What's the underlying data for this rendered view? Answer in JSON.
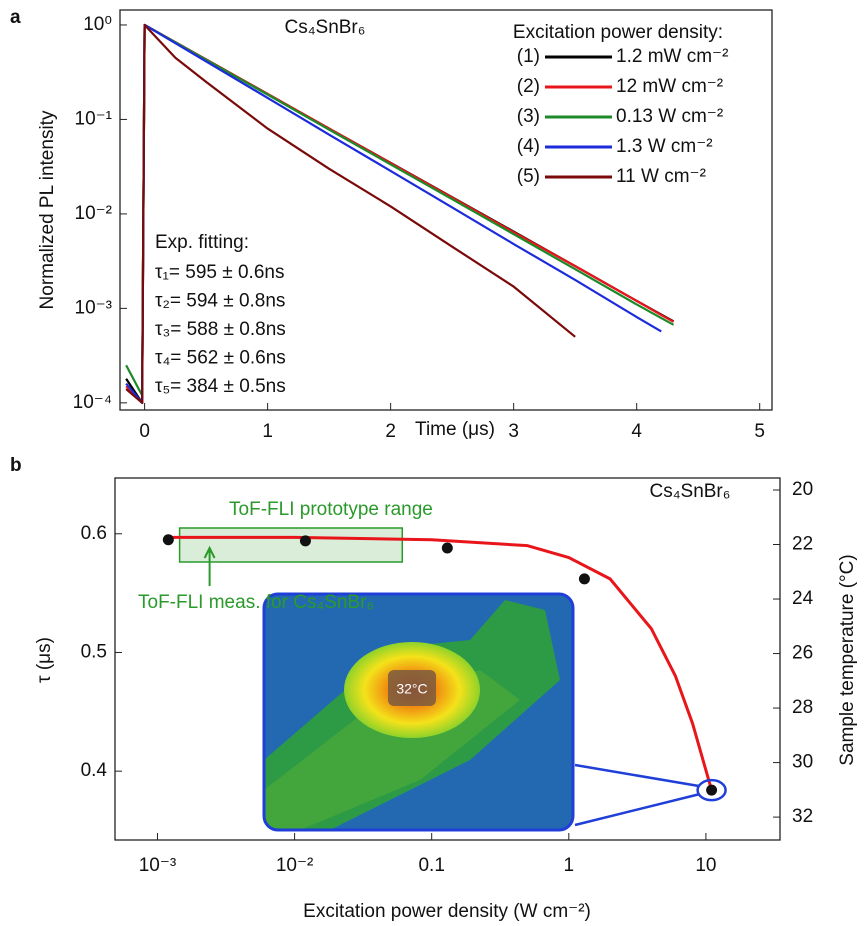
{
  "chart_data": [
    {
      "type": "line",
      "panel": "a",
      "title": "Cs₄SnBr₆",
      "x_label": "Time (μs)",
      "y_label": "Normalized PL intensity",
      "legend_title": "Excitation power density:",
      "log_y": true,
      "x": [
        -0.15,
        -0.02,
        0,
        0.25,
        0.5,
        1,
        1.5,
        2,
        2.5,
        3,
        3.5,
        4,
        4.2,
        4.3
      ],
      "series": [
        {
          "label": "(1)",
          "name": "1.2 mW cm⁻²",
          "color": "#000000",
          "values": [
            0.00018,
            0.0001,
            1,
            0.657,
            0.432,
            0.186,
            0.08,
            0.0347,
            0.015,
            0.0065,
            0.0028,
            0.0012,
            0.00086,
            0.00073
          ]
        },
        {
          "label": "(2)",
          "name": "12 mW cm⁻²",
          "color": "#e8161a",
          "values": [
            0.00015,
            0.0001,
            1,
            0.656,
            0.431,
            0.186,
            0.08,
            0.0345,
            0.0149,
            0.0064,
            0.0028,
            0.0012,
            0.00085,
            0.00072
          ]
        },
        {
          "label": "(3)",
          "name": "0.13 W cm⁻²",
          "color": "#1d8a2a",
          "values": [
            0.00025,
            0.00012,
            1,
            0.654,
            0.427,
            0.183,
            0.078,
            0.0334,
            0.0143,
            0.0061,
            0.0026,
            0.0011,
            0.00079,
            0.00067
          ]
        },
        {
          "label": "(4)",
          "name": "1.3  W cm⁻²",
          "color": "#1c2bdb",
          "values": [
            0.00016,
            0.0001,
            1,
            0.641,
            0.411,
            0.169,
            0.069,
            0.0285,
            0.0117,
            0.0048,
            0.002,
            0.00081,
            0.00057,
            null
          ]
        },
        {
          "label": "(5)",
          "name": "11 W cm⁻²",
          "color": "#7a0a0a",
          "values": [
            0.00014,
            0.0001,
            1,
            0.45,
            0.25,
            0.08,
            0.03,
            0.012,
            0.0045,
            0.0017,
            0.0005,
            null,
            null,
            null
          ]
        }
      ],
      "fit_title": "Exp. fitting:",
      "fits": [
        "τ₁= 595 ± 0.6ns",
        "τ₂= 594 ± 0.8ns",
        "τ₃= 588 ± 0.8ns",
        "τ₄= 562 ± 0.6ns",
        "τ₅= 384 ± 0.5ns"
      ],
      "xlim": [
        -0.2,
        5.1
      ],
      "xticks": [
        0,
        1,
        2,
        3,
        4,
        5
      ],
      "ylim": [
        8.4e-05,
        1.44
      ],
      "yticks": [
        {
          "value": 0.0001,
          "label": "10⁻⁴"
        },
        {
          "value": 0.001,
          "label": "10⁻³"
        },
        {
          "value": 0.01,
          "label": "10⁻²"
        },
        {
          "value": 0.1,
          "label": "10⁻¹"
        },
        {
          "value": 1,
          "label": "10⁰"
        }
      ]
    },
    {
      "type": "scatter",
      "panel": "b",
      "title": "Cs₄SnBr₆",
      "x_label": "Excitation power density (W cm⁻²)",
      "y_label": "τ (μs)",
      "y2_label": "Sample temperature (°C)",
      "log_x": true,
      "x": [
        0.0012,
        0.012,
        0.13,
        1.3,
        11
      ],
      "values": [
        0.595,
        0.594,
        0.588,
        0.562,
        0.384
      ],
      "color": "#111111",
      "fit": {
        "color": "#e8161a",
        "x": [
          0.0012,
          0.01,
          0.1,
          0.5,
          1,
          2,
          4,
          6,
          8,
          11
        ],
        "values": [
          0.597,
          0.597,
          0.595,
          0.59,
          0.58,
          0.562,
          0.52,
          0.48,
          0.44,
          0.384
        ]
      },
      "range": {
        "label": "ToF-FLI prototype range",
        "x": [
          0.00145,
          0.061
        ],
        "color": "#2a9a2a"
      },
      "arrow": {
        "label": "ToF-FLI meas. for Cs₄SnBr₆",
        "x": 0.0024
      },
      "inset_label": "32°C",
      "xlim": [
        0.00049,
        34.7
      ],
      "xticks": [
        {
          "value": 0.001,
          "label": "10⁻³"
        },
        {
          "value": 0.01,
          "label": "10⁻²"
        },
        0.1,
        1,
        10
      ],
      "ylim": [
        0.342,
        0.647
      ],
      "yticks": [
        0.4,
        0.5,
        0.6
      ],
      "y2lim": [
        32.84,
        19.56
      ],
      "y2ticks": [
        20,
        22,
        24,
        26,
        28,
        30,
        32
      ]
    }
  ]
}
